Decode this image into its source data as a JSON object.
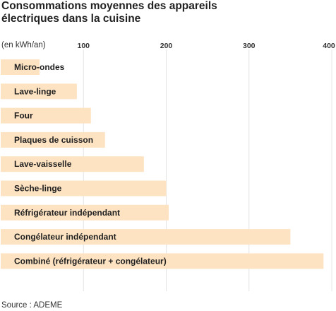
{
  "title_lines": [
    "Consommations moyennes des appareils",
    "électriques dans la cuisine"
  ],
  "unit_label": "(en kWh/an)",
  "source": "Source : ADEME",
  "colors": {
    "bar": "#fde3c2",
    "grid": "#e4e4e4",
    "text": "#1f1f1f"
  },
  "chart_data": {
    "type": "bar",
    "orientation": "horizontal",
    "title": "Consommations moyennes des appareils électriques dans la cuisine",
    "xlabel": "",
    "ylabel": "",
    "unit": "(en kWh/an)",
    "xlim": [
      0,
      400
    ],
    "ticks": [
      100,
      200,
      300,
      400
    ],
    "tick_labels": [
      "100",
      "200",
      "300",
      "400"
    ],
    "grid": true,
    "categories": [
      "Micro-ondes",
      "Lave-linge",
      "Four",
      "Plaques de cuisson",
      "Lave-vaisselle",
      "Sèche-linge",
      "Réfrigérateur indépendant",
      "Congélateur indépendant",
      "Combiné (réfrigérateur + congélateur)"
    ],
    "values": [
      47,
      92,
      109,
      126,
      173,
      200,
      203,
      350,
      390
    ]
  }
}
